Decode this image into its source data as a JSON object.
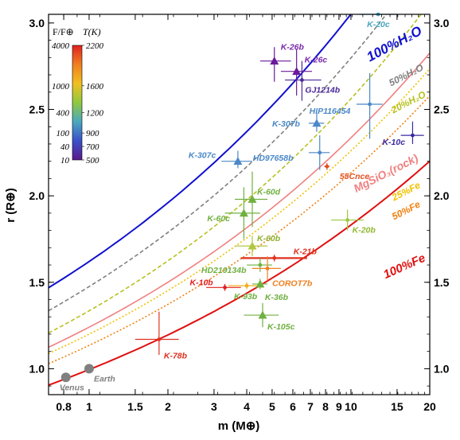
{
  "chart_data": {
    "type": "scatter",
    "xlabel": "m (M⊕)",
    "ylabel": "r (R⊕)",
    "xscale": "log",
    "xlim": [
      0.7,
      20
    ],
    "ylim": [
      0.85,
      3.05
    ],
    "x_ticks": [
      {
        "v": 0.8,
        "t": "0.8"
      },
      {
        "v": 1,
        "t": "1"
      },
      {
        "v": 1.5,
        "t": "1.5"
      },
      {
        "v": 2,
        "t": "2"
      },
      {
        "v": 3,
        "t": "3"
      },
      {
        "v": 4,
        "t": "4"
      },
      {
        "v": 5,
        "t": "5"
      },
      {
        "v": 6,
        "t": "6"
      },
      {
        "v": 7,
        "t": "7"
      },
      {
        "v": 8,
        "t": "8"
      },
      {
        "v": 9,
        "t": "9"
      },
      {
        "v": 10,
        "t": "10"
      },
      {
        "v": 15,
        "t": "15"
      },
      {
        "v": 20,
        "t": "20"
      }
    ],
    "y_ticks": [
      {
        "v": 1.0,
        "t": "1.0"
      },
      {
        "v": 1.5,
        "t": "1.5"
      },
      {
        "v": 2.0,
        "t": "2.0"
      },
      {
        "v": 2.5,
        "t": "2.5"
      },
      {
        "v": 3.0,
        "t": "3.0"
      }
    ],
    "curves": [
      {
        "name": "100%H₂O",
        "label": "100%H₂O",
        "color": "#1010d0",
        "style": "solid",
        "width": 2.0,
        "r1": 1.62,
        "exp": 0.275,
        "labelSize": 17
      },
      {
        "name": "50%H₂O",
        "label": "50%H₂O",
        "color": "#808080",
        "style": "dash",
        "width": 1.6,
        "r1": 1.475,
        "exp": 0.278,
        "labelSize": 12
      },
      {
        "name": "20%H₂O",
        "label": "20%H₂O",
        "color": "#b8c020",
        "style": "dash",
        "width": 1.6,
        "r1": 1.335,
        "exp": 0.283,
        "labelSize": 12
      },
      {
        "name": "MgSiO₃(rock)",
        "label": "MgSiO₃(rock)",
        "color": "#f08080",
        "style": "solid",
        "width": 1.6,
        "r1": 1.24,
        "exp": 0.275,
        "labelSize": 14
      },
      {
        "name": "25%Fe",
        "label": "25%Fe",
        "color": "#f0c000",
        "style": "dot",
        "width": 1.6,
        "r1": 1.2,
        "exp": 0.275,
        "labelSize": 12
      },
      {
        "name": "50%Fe",
        "label": "50%Fe",
        "color": "#f08010",
        "style": "dot",
        "width": 1.6,
        "r1": 1.135,
        "exp": 0.274,
        "labelSize": 12
      },
      {
        "name": "100%Fe",
        "label": "100%Fe",
        "color": "#e01010",
        "style": "solid",
        "width": 2.0,
        "r1": 0.995,
        "exp": 0.265,
        "labelSize": 15
      }
    ],
    "planets": [
      {
        "name": "K-20c",
        "m": 12.7,
        "r": 3.05,
        "mlo": 10.8,
        "mhi": 15.0,
        "rlo": 3.05,
        "rhi": 3.05,
        "marker": "circle",
        "color": "#4aa8c0",
        "label_color": "#4aa8c0"
      },
      {
        "name": "K-26b",
        "m": 5.1,
        "r": 2.78,
        "mlo": 4.5,
        "mhi": 5.9,
        "rlo": 2.66,
        "rhi": 2.86,
        "marker": "triangle",
        "color": "#6a1a9a",
        "label_color": "#7a2aaa"
      },
      {
        "name": "K-26c",
        "m": 6.2,
        "r": 2.72,
        "mlo": 5.4,
        "mhi": 7.1,
        "rlo": 2.58,
        "rhi": 2.85,
        "marker": "triangle",
        "color": "#6a1a9a",
        "label_color": "#7a2aaa"
      },
      {
        "name": "GJ1214b",
        "m": 6.5,
        "r": 2.67,
        "mlo": 5.6,
        "mhi": 7.7,
        "rlo": 2.55,
        "rhi": 2.78,
        "marker": "circle",
        "color": "#4a2a9a",
        "label_color": "#4a2a9a"
      },
      {
        "name": "HIP116454",
        "m": 11.8,
        "r": 2.53,
        "mlo": 10.5,
        "mhi": 13.2,
        "rlo": 2.33,
        "rhi": 2.71,
        "marker": "circle",
        "color": "#4a88c8",
        "label_color": "#4a88c8"
      },
      {
        "name": "K-307b",
        "m": 7.4,
        "r": 2.42,
        "mlo": 6.9,
        "mhi": 7.9,
        "rlo": 2.37,
        "rhi": 2.48,
        "marker": "triangle",
        "color": "#4a88c8",
        "label_color": "#4a88c8"
      },
      {
        "name": "K-10c",
        "m": 17.2,
        "r": 2.35,
        "mlo": 15.5,
        "mhi": 19.0,
        "rlo": 2.3,
        "rhi": 2.43,
        "marker": "circle",
        "color": "#3a2aa0",
        "label_color": "#3a2aa0"
      },
      {
        "name": "HD97658b",
        "m": 7.6,
        "r": 2.25,
        "mlo": 6.9,
        "mhi": 8.3,
        "rlo": 2.15,
        "rhi": 2.35,
        "marker": "circle",
        "color": "#4a88c8",
        "label_color": "#4a88c8"
      },
      {
        "name": "K-307c",
        "m": 3.7,
        "r": 2.2,
        "mlo": 3.2,
        "mhi": 4.2,
        "rlo": 2.16,
        "rhi": 2.26,
        "marker": "triangle",
        "color": "#4a88c8",
        "label_color": "#4a88c8"
      },
      {
        "name": "55Cnce",
        "m": 8.1,
        "r": 2.17,
        "mlo": 7.9,
        "mhi": 8.3,
        "rlo": 2.15,
        "rhi": 2.19,
        "marker": "circle",
        "color": "#e05020",
        "label_color": "#e05020"
      },
      {
        "name": "K-60d",
        "m": 4.2,
        "r": 1.98,
        "mlo": 3.6,
        "mhi": 4.8,
        "rlo": 1.82,
        "rhi": 2.14,
        "marker": "triangle",
        "color": "#70b040",
        "label_color": "#70b040"
      },
      {
        "name": "K-60c",
        "m": 3.9,
        "r": 1.9,
        "mlo": 3.3,
        "mhi": 4.5,
        "rlo": 1.75,
        "rhi": 2.05,
        "marker": "triangle",
        "color": "#70b040",
        "label_color": "#70b040"
      },
      {
        "name": "K-20b",
        "m": 9.7,
        "r": 1.86,
        "mlo": 8.4,
        "mhi": 11.2,
        "rlo": 1.8,
        "rhi": 1.92,
        "marker": "circle",
        "color": "#a0c840",
        "label_color": "#90b830"
      },
      {
        "name": "K-60b",
        "m": 4.2,
        "r": 1.71,
        "mlo": 3.6,
        "mhi": 4.8,
        "rlo": 1.65,
        "rhi": 1.77,
        "marker": "triangle",
        "color": "#b0c840",
        "label_color": "#90b030"
      },
      {
        "name": "K-21b",
        "m": 5.1,
        "r": 1.64,
        "mlo": 3.8,
        "mhi": 6.8,
        "rlo": 1.62,
        "rhi": 1.66,
        "marker": "circle",
        "color": "#e03020",
        "label_color": "#e03020"
      },
      {
        "name": "HD219134b",
        "m": 4.5,
        "r": 1.6,
        "mlo": 4.0,
        "mhi": 5.0,
        "rlo": 1.56,
        "rhi": 1.64,
        "marker": "circle",
        "color": "#70b040",
        "label_color": "#70b040"
      },
      {
        "name": "COROT7b",
        "m": 4.8,
        "r": 1.58,
        "mlo": 4.2,
        "mhi": 5.4,
        "rlo": 1.51,
        "rhi": 1.65,
        "marker": "circle",
        "color": "#f08020",
        "label_color": "#f08020"
      },
      {
        "name": "K-10b",
        "m": 3.3,
        "r": 1.47,
        "mlo": 2.8,
        "mhi": 3.8,
        "rlo": 1.45,
        "rhi": 1.49,
        "marker": "circle",
        "color": "#e02020",
        "label_color": "#e02020"
      },
      {
        "name": "K-93b",
        "m": 4.0,
        "r": 1.48,
        "mlo": 3.4,
        "mhi": 4.6,
        "rlo": 1.46,
        "rhi": 1.5,
        "marker": "circle",
        "color": "#f0b020",
        "label_color": "#70b040"
      },
      {
        "name": "K-36b",
        "m": 4.5,
        "r": 1.49,
        "mlo": 4.2,
        "mhi": 4.8,
        "rlo": 1.46,
        "rhi": 1.52,
        "marker": "triangle",
        "color": "#70b040",
        "label_color": "#70b040"
      },
      {
        "name": "K-105c",
        "m": 4.6,
        "r": 1.31,
        "mlo": 3.9,
        "mhi": 5.3,
        "rlo": 1.24,
        "rhi": 1.38,
        "marker": "triangle",
        "color": "#70b040",
        "label_color": "#70b040"
      },
      {
        "name": "K-78b",
        "m": 1.85,
        "r": 1.17,
        "mlo": 1.5,
        "mhi": 2.2,
        "rlo": 1.08,
        "rhi": 1.33,
        "marker": "circle",
        "color": "#e03020",
        "label_color": "#e03020"
      },
      {
        "name": "Venus",
        "m": 0.815,
        "r": 0.95,
        "mlo": 0.815,
        "mhi": 0.815,
        "rlo": 0.95,
        "rhi": 0.95,
        "marker": "disk",
        "color": "#808080",
        "label_color": "#808080"
      },
      {
        "name": "Earth",
        "m": 1.0,
        "r": 1.0,
        "mlo": 1.0,
        "mhi": 1.0,
        "rlo": 1.0,
        "rhi": 1.0,
        "marker": "disk",
        "color": "#808080",
        "label_color": "#808080"
      }
    ],
    "colorbar": {
      "title_flux": "F/F⊕",
      "title_temp": "T(K)",
      "flux_labels": [
        "4000",
        "1000",
        "400",
        "100",
        "40",
        "10"
      ],
      "temp_labels": [
        "2200",
        "1600",
        "1200",
        "900",
        "700",
        "500"
      ],
      "temp_range": [
        500,
        2200
      ],
      "stops": [
        "#5a1a8a",
        "#3a50c8",
        "#4aa8c0",
        "#90c840",
        "#f0c020",
        "#f08020",
        "#e02020"
      ]
    }
  }
}
